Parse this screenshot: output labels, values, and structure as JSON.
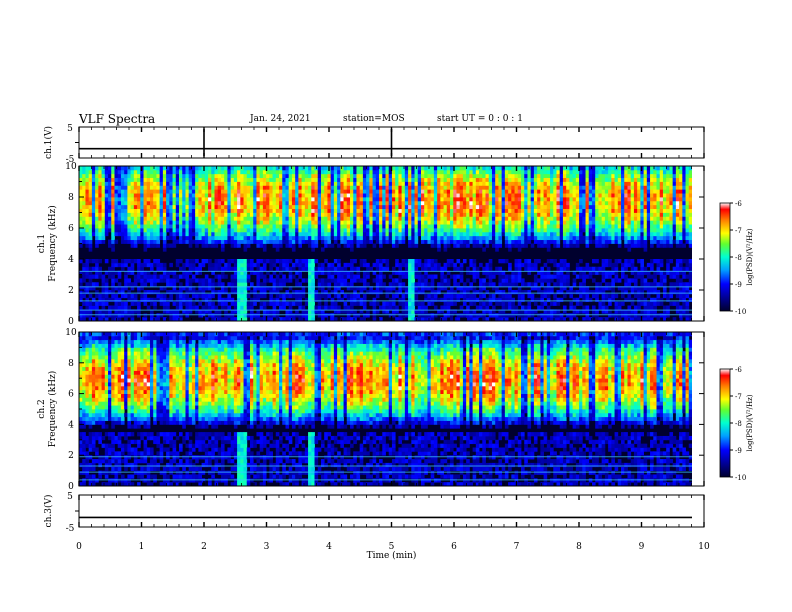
{
  "header": {
    "title": "VLF Spectra",
    "date": "Jan. 24, 2021",
    "station": "station=MOS",
    "start_ut": "start UT =  0 : 0 : 1"
  },
  "colormap": [
    "#00002e",
    "#000080",
    "#0000ff",
    "#00a0ff",
    "#00ffd0",
    "#60ff30",
    "#ffff00",
    "#ff8000",
    "#ff0000",
    "#ffffff"
  ],
  "chart_data": [
    {
      "type": "line",
      "name": "ch1-waveform",
      "ylabel": "ch.1(V)",
      "yticks": [
        "5",
        "-5"
      ],
      "ylim": [
        -5,
        5
      ],
      "xlim": [
        0,
        10
      ],
      "baseline_v": -2.0,
      "spike_times_min": [
        2.0,
        5.0
      ]
    },
    {
      "type": "heatmap",
      "name": "ch1-spectrogram",
      "ylabel": "ch.1\nFrequency (kHz)",
      "ylim": [
        0,
        10
      ],
      "yticks": [
        "0",
        "2",
        "4",
        "6",
        "8",
        "10"
      ],
      "xlim": [
        0,
        9.8
      ],
      "main_band_khz": [
        5.5,
        9.0
      ],
      "band_peak_khz": 7.8,
      "tone_lines_khz": [
        0.4,
        0.7,
        1.3,
        1.8,
        2.2,
        3.2
      ],
      "broadband_bursts_min": [
        2.6,
        3.7,
        5.3
      ],
      "colorbar": {
        "label": "log(PSD)(V²/Hz)",
        "ticks": [
          "-6",
          "-7",
          "-8",
          "-9",
          "-10"
        ],
        "range": [
          -10,
          -6
        ]
      }
    },
    {
      "type": "heatmap",
      "name": "ch2-spectrogram",
      "ylabel": "ch.2\nFrequency (kHz)",
      "ylim": [
        0,
        10
      ],
      "yticks": [
        "0",
        "2",
        "4",
        "6",
        "8",
        "10"
      ],
      "xlim": [
        0,
        9.8
      ],
      "main_band_khz": [
        5.0,
        8.5
      ],
      "band_peak_khz": 6.9,
      "tone_lines_khz": [
        0.4,
        0.9,
        1.3,
        1.9
      ],
      "broadband_bursts_min": [
        2.6,
        3.7
      ],
      "colorbar": {
        "label": "log(PSD)(V²/Hz)",
        "ticks": [
          "-6",
          "-7",
          "-8",
          "-9",
          "-10"
        ],
        "range": [
          -10,
          -6
        ]
      }
    },
    {
      "type": "line",
      "name": "ch3-waveform",
      "ylabel": "ch.3(V)",
      "yticks": [
        "5",
        "-5"
      ],
      "ylim": [
        -5,
        5
      ],
      "xlim": [
        0,
        10
      ],
      "baseline_v": -2.0
    }
  ],
  "x_axis": {
    "label": "Time (min)",
    "ticks": [
      "0",
      "1",
      "2",
      "3",
      "4",
      "5",
      "6",
      "7",
      "8",
      "9",
      "10"
    ]
  }
}
